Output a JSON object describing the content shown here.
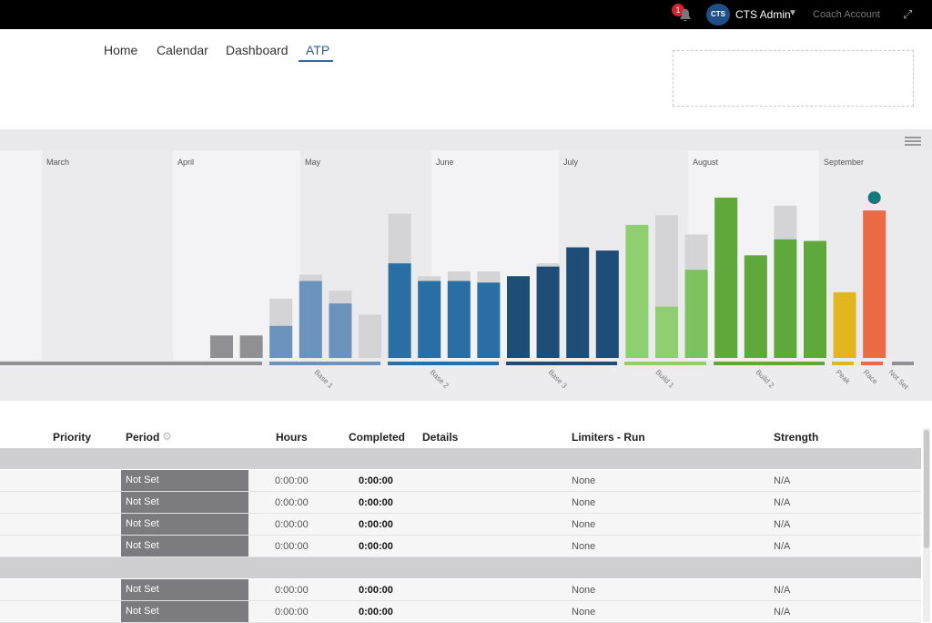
{
  "topbar": {
    "notification_count": "1",
    "logo_text": "CTS",
    "user_name": "CTS Admin",
    "coach_label": "Coach Account"
  },
  "nav": {
    "items": [
      "Home",
      "Calendar",
      "Dashboard",
      "ATP"
    ],
    "active": "ATP"
  },
  "chart_data": {
    "type": "bar",
    "months": [
      "March",
      "April",
      "May",
      "June",
      "July",
      "August",
      "September"
    ],
    "phases": [
      "Base 1",
      "Base 2",
      "Base 3",
      "Build 1",
      "Build 2",
      "Peak",
      "Race",
      "Not Set"
    ],
    "weeks": [
      {
        "phase": "Not Set",
        "planned": 0.14,
        "completed": 0.14,
        "color": "#8f8f94"
      },
      {
        "phase": "Not Set",
        "planned": 0.14,
        "completed": 0.14,
        "color": "#8f8f94"
      },
      {
        "phase": "Base 1",
        "planned": 0.37,
        "completed": 0.2,
        "color": "#6b93bb"
      },
      {
        "phase": "Base 1",
        "planned": 0.52,
        "completed": 0.48,
        "color": "#6b93bb"
      },
      {
        "phase": "Base 1",
        "planned": 0.42,
        "completed": 0.34,
        "color": "#6b93bb"
      },
      {
        "phase": "Base 1",
        "planned": 0.27,
        "completed": 0.0,
        "color": "#6b93bb"
      },
      {
        "phase": "Base 2",
        "planned": 0.9,
        "completed": 0.59,
        "color": "#2a6fa3"
      },
      {
        "phase": "Base 2",
        "planned": 0.51,
        "completed": 0.48,
        "color": "#2a6fa3"
      },
      {
        "phase": "Base 2",
        "planned": 0.54,
        "completed": 0.48,
        "color": "#2a6fa3"
      },
      {
        "phase": "Base 2",
        "planned": 0.54,
        "completed": 0.47,
        "color": "#2a6fa3"
      },
      {
        "phase": "Base 3",
        "planned": 0.51,
        "completed": 0.51,
        "color": "#1e4d78"
      },
      {
        "phase": "Base 3",
        "planned": 0.59,
        "completed": 0.57,
        "color": "#1e4d78"
      },
      {
        "phase": "Base 3",
        "planned": 0.69,
        "completed": 0.69,
        "color": "#1e4d78"
      },
      {
        "phase": "Base 3",
        "planned": 0.67,
        "completed": 0.67,
        "color": "#1e4d78"
      },
      {
        "phase": "Build 1",
        "planned": 0.83,
        "completed": 0.83,
        "color": "#8fcf72"
      },
      {
        "phase": "Build 1",
        "planned": 0.89,
        "completed": 0.32,
        "color": "#8fcf72"
      },
      {
        "phase": "Build 1",
        "planned": 0.77,
        "completed": 0.55,
        "color": "#7ec25f"
      },
      {
        "phase": "Build 2",
        "planned": 1.0,
        "completed": 1.0,
        "color": "#5fa83c"
      },
      {
        "phase": "Build 2",
        "planned": 0.64,
        "completed": 0.64,
        "color": "#5fa83c"
      },
      {
        "phase": "Build 2",
        "planned": 0.95,
        "completed": 0.74,
        "color": "#5fa83c"
      },
      {
        "phase": "Build 2",
        "planned": 0.73,
        "completed": 0.73,
        "color": "#5fa83c"
      },
      {
        "phase": "Peak",
        "planned": 0.41,
        "completed": 0.41,
        "color": "#e2b620"
      },
      {
        "phase": "Race",
        "planned": 0.92,
        "completed": 0.92,
        "color": "#ec6a45"
      }
    ],
    "phase_colors": {
      "Base 1": "#6b93bb",
      "Base 2": "#2a6fa3",
      "Base 3": "#1e4d78",
      "Build 1": "#8fcf72",
      "Build 2": "#5fa83c",
      "Peak": "#e2b620",
      "Race": "#ec6a45",
      "Not Set": "#8f8f94"
    },
    "race_icon": "trophy-icon"
  },
  "table": {
    "headers": [
      "Priority",
      "Period",
      "Hours",
      "Completed",
      "Details",
      "Limiters - Run",
      "Strength"
    ],
    "rows": [
      {
        "period": "Not Set",
        "hours": "0:00:00",
        "completed": "0:00:00",
        "limiters": "None",
        "strength": "N/A"
      },
      {
        "period": "Not Set",
        "hours": "0:00:00",
        "completed": "0:00:00",
        "limiters": "None",
        "strength": "N/A"
      },
      {
        "period": "Not Set",
        "hours": "0:00:00",
        "completed": "0:00:00",
        "limiters": "None",
        "strength": "N/A"
      },
      {
        "period": "Not Set",
        "hours": "0:00:00",
        "completed": "0:00:00",
        "limiters": "None",
        "strength": "N/A"
      },
      {
        "period": "Not Set",
        "hours": "0:00:00",
        "completed": "0:00:00",
        "limiters": "None",
        "strength": "N/A"
      },
      {
        "period": "Not Set",
        "hours": "0:00:00",
        "completed": "0:00:00",
        "limiters": "None",
        "strength": "N/A"
      }
    ]
  }
}
